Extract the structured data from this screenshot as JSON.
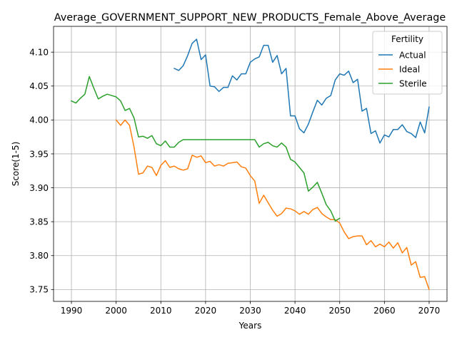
{
  "chart_data": {
    "type": "line",
    "title": "Average_GOVERNMENT_SUPPORT_NEW_PRODUCTS_Female_Above_Average",
    "xlabel": "Years",
    "ylabel": "Score(1-5)",
    "xlim": [
      1986.0,
      2074.0
    ],
    "ylim": [
      3.7325,
      4.138
    ],
    "xticks": [
      1990,
      2000,
      2010,
      2020,
      2030,
      2040,
      2050,
      2060,
      2070
    ],
    "yticks": [
      3.75,
      3.8,
      3.85,
      3.9,
      3.95,
      4.0,
      4.05,
      4.1
    ],
    "xtick_labels": [
      "1990",
      "2000",
      "2010",
      "2020",
      "2030",
      "2040",
      "2050",
      "2060",
      "2070"
    ],
    "ytick_labels": [
      "3.75",
      "3.80",
      "3.85",
      "3.90",
      "3.95",
      "4.00",
      "4.05",
      "4.10"
    ],
    "grid": true,
    "legend": {
      "title": "Fertility",
      "position": "top-right"
    },
    "series": [
      {
        "name": "Actual",
        "color": "#1f77b4",
        "x": [
          2013,
          2014,
          2015,
          2016,
          2017,
          2018,
          2019,
          2020,
          2021,
          2022,
          2023,
          2024,
          2025,
          2026,
          2027,
          2028,
          2029,
          2030,
          2031,
          2032,
          2033,
          2034,
          2035,
          2036,
          2037,
          2038,
          2039,
          2040,
          2041,
          2042,
          2043,
          2044,
          2045,
          2046,
          2047,
          2048,
          2049,
          2050,
          2051,
          2052,
          2053,
          2054,
          2055,
          2056,
          2057,
          2058,
          2059,
          2060,
          2061,
          2062,
          2063,
          2064,
          2065,
          2066,
          2067,
          2068,
          2069,
          2070
        ],
        "values": [
          4.076,
          4.073,
          4.08,
          4.095,
          4.113,
          4.119,
          4.089,
          4.096,
          4.05,
          4.049,
          4.042,
          4.048,
          4.048,
          4.065,
          4.059,
          4.068,
          4.068,
          4.085,
          4.09,
          4.093,
          4.11,
          4.11,
          4.085,
          4.095,
          4.068,
          4.076,
          4.006,
          4.006,
          3.987,
          3.981,
          3.994,
          4.012,
          4.029,
          4.022,
          4.032,
          4.036,
          4.059,
          4.068,
          4.066,
          4.072,
          4.055,
          4.06,
          4.013,
          4.017,
          3.98,
          3.984,
          3.966,
          3.978,
          3.975,
          3.986,
          3.986,
          3.993,
          3.983,
          3.98,
          3.974,
          3.997,
          3.981,
          4.019
        ]
      },
      {
        "name": "Ideal",
        "color": "#ff7f0e",
        "x": [
          2000,
          2001,
          2002,
          2003,
          2004,
          2005,
          2006,
          2007,
          2008,
          2009,
          2010,
          2011,
          2012,
          2013,
          2014,
          2015,
          2016,
          2017,
          2018,
          2019,
          2020,
          2021,
          2022,
          2023,
          2024,
          2025,
          2026,
          2027,
          2028,
          2029,
          2030,
          2031,
          2032,
          2033,
          2034,
          2035,
          2036,
          2037,
          2038,
          2039,
          2040,
          2041,
          2042,
          2043,
          2044,
          2045,
          2046,
          2047,
          2048,
          2049,
          2050,
          2051,
          2052,
          2053,
          2054,
          2055,
          2056,
          2057,
          2058,
          2059,
          2060,
          2061,
          2062,
          2063,
          2064,
          2065,
          2066,
          2067,
          2068,
          2069,
          2070
        ],
        "values": [
          4.0,
          3.992,
          4.0,
          3.992,
          3.96,
          3.92,
          3.922,
          3.932,
          3.93,
          3.918,
          3.933,
          3.94,
          3.93,
          3.932,
          3.928,
          3.926,
          3.928,
          3.948,
          3.945,
          3.947,
          3.937,
          3.939,
          3.932,
          3.934,
          3.932,
          3.936,
          3.937,
          3.938,
          3.931,
          3.929,
          3.918,
          3.91,
          3.877,
          3.889,
          3.878,
          3.867,
          3.858,
          3.862,
          3.87,
          3.869,
          3.866,
          3.861,
          3.865,
          3.861,
          3.868,
          3.871,
          3.862,
          3.857,
          3.853,
          3.853,
          3.848,
          3.835,
          3.825,
          3.828,
          3.829,
          3.829,
          3.816,
          3.822,
          3.813,
          3.817,
          3.813,
          3.82,
          3.811,
          3.819,
          3.804,
          3.812,
          3.786,
          3.791,
          3.768,
          3.769,
          3.75
        ]
      },
      {
        "name": "Sterile",
        "color": "#2ca02c",
        "x": [
          1990,
          1991,
          1992,
          1993,
          1994,
          1995,
          1996,
          1997,
          1998,
          1999,
          2000,
          2001,
          2002,
          2003,
          2004,
          2005,
          2006,
          2007,
          2008,
          2009,
          2010,
          2011,
          2012,
          2013,
          2014,
          2015,
          2016,
          2017,
          2018,
          2019,
          2020,
          2021,
          2022,
          2023,
          2024,
          2025,
          2026,
          2027,
          2028,
          2029,
          2030,
          2031,
          2032,
          2033,
          2034,
          2035,
          2036,
          2037,
          2038,
          2039,
          2040,
          2041,
          2042,
          2043,
          2044,
          2045,
          2046,
          2047,
          2048,
          2049,
          2050
        ],
        "values": [
          4.028,
          4.025,
          4.032,
          4.038,
          4.064,
          4.047,
          4.031,
          4.035,
          4.038,
          4.036,
          4.034,
          4.028,
          4.014,
          4.017,
          4.003,
          3.975,
          3.976,
          3.973,
          3.977,
          3.965,
          3.962,
          3.969,
          3.96,
          3.96,
          3.967,
          3.971,
          3.971,
          3.971,
          3.971,
          3.971,
          3.971,
          3.971,
          3.971,
          3.971,
          3.971,
          3.971,
          3.971,
          3.971,
          3.971,
          3.971,
          3.971,
          3.971,
          3.96,
          3.965,
          3.967,
          3.962,
          3.96,
          3.966,
          3.96,
          3.942,
          3.938,
          3.93,
          3.922,
          3.895,
          3.901,
          3.908,
          3.892,
          3.875,
          3.866,
          3.851,
          3.855
        ]
      }
    ]
  }
}
